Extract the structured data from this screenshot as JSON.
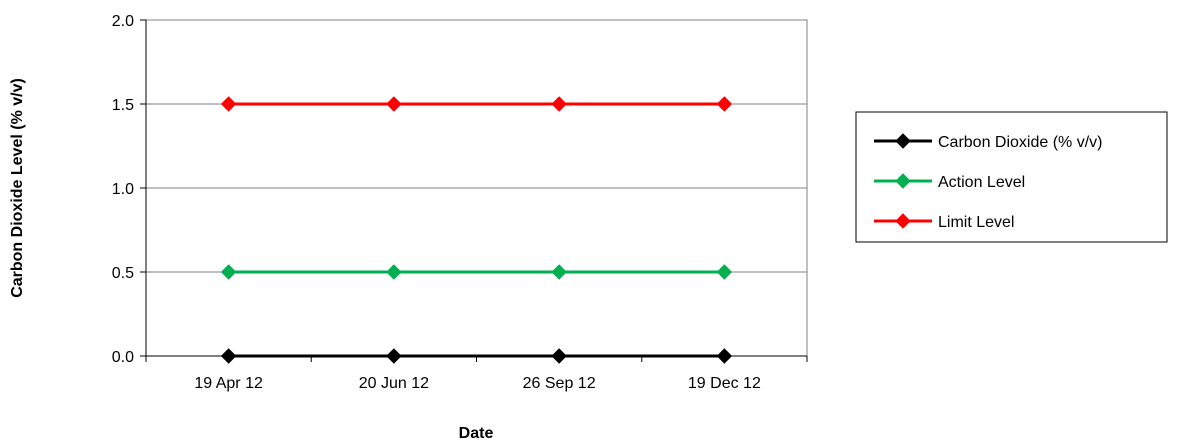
{
  "chart_data": {
    "type": "line",
    "title": "",
    "xlabel": "Date",
    "ylabel": "Carbon Dioxide Level (% v/v)",
    "categories": [
      "19 Apr 12",
      "20 Jun 12",
      "26 Sep 12",
      "19 Dec 12"
    ],
    "y_ticks": [
      "0.0",
      "0.5",
      "1.0",
      "1.5",
      "2.0"
    ],
    "ylim": [
      0,
      2
    ],
    "grid": true,
    "legend_position": "right",
    "series": [
      {
        "name": "Carbon Dioxide (% v/v)",
        "color": "#000000",
        "marker": "diamond",
        "values": [
          0,
          0,
          0,
          0
        ]
      },
      {
        "name": "Action Level",
        "color": "#00b050",
        "marker": "diamond",
        "values": [
          0.5,
          0.5,
          0.5,
          0.5
        ]
      },
      {
        "name": "Limit Level",
        "color": "#ff0000",
        "marker": "diamond",
        "values": [
          1.5,
          1.5,
          1.5,
          1.5
        ]
      }
    ]
  }
}
